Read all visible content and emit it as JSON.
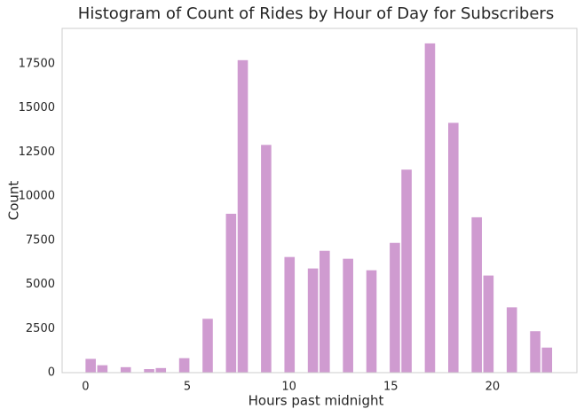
{
  "chart_data": {
    "type": "histogram",
    "title": "Histogram of Count of Rides by Hour of Day for Subscribers",
    "x_label": "Hours past midnight",
    "y_label": "Count",
    "bins": [
      0,
      0.575,
      1.15,
      1.725,
      2.3,
      2.875,
      3.45,
      4.025,
      4.6,
      5.175,
      5.75,
      6.325,
      6.9,
      7.475,
      8.05,
      8.625,
      9.2,
      9.775,
      10.35,
      10.925,
      11.5,
      12.075,
      12.65,
      13.225,
      13.8,
      14.375,
      14.95,
      15.525,
      16.1,
      16.675,
      17.25,
      17.825,
      18.4,
      18.975,
      19.55,
      20.125,
      20.7,
      21.275,
      21.85,
      22.425,
      23
    ],
    "values": [
      780,
      420,
      0,
      310,
      0,
      200,
      260,
      0,
      820,
      0,
      3050,
      0,
      9000,
      17700,
      0,
      12900,
      0,
      6550,
      0,
      5900,
      6900,
      0,
      6450,
      0,
      5800,
      0,
      7350,
      11500,
      0,
      18650,
      0,
      14150,
      0,
      8800,
      5500,
      0,
      3700,
      0,
      2350,
      1420
    ],
    "color": "#cf9bd0",
    "xlim": [
      -1.15,
      24.15
    ],
    "xticks": [
      0,
      5,
      10,
      15,
      20
    ],
    "ylim": [
      0,
      19500
    ],
    "yticks": [
      0,
      2500,
      5000,
      7500,
      10000,
      12500,
      15000,
      17500
    ],
    "grid": false
  }
}
